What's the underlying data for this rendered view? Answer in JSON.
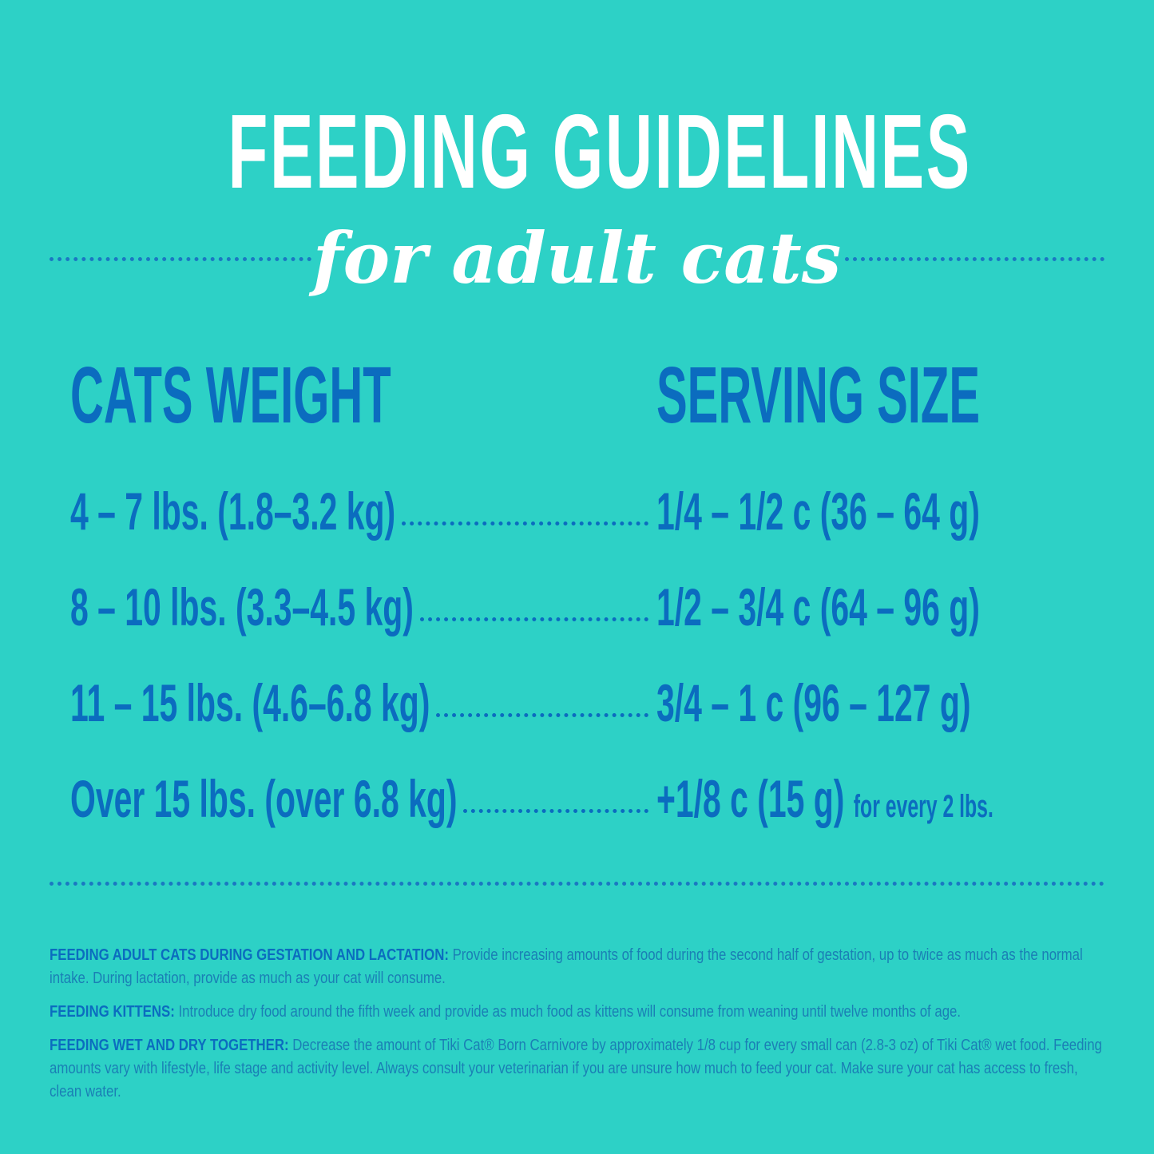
{
  "header": {
    "title": "FEEDING GUIDELINES",
    "subtitle": "for adult cats"
  },
  "columns": {
    "weight": "CATS WEIGHT",
    "serving": "SERVING SIZE"
  },
  "rows": [
    {
      "weight": "4 – 7 lbs. (1.8–3.2 kg)",
      "serving": "1/4 – 1/2 c (36 – 64 g)",
      "note": ""
    },
    {
      "weight": "8 – 10 lbs. (3.3–4.5 kg)",
      "serving": "1/2 – 3/4 c (64 – 96 g)",
      "note": ""
    },
    {
      "weight": "11 – 15 lbs. (4.6–6.8 kg)",
      "serving": "3/4 – 1 c (96 – 127 g)",
      "note": ""
    },
    {
      "weight": "Over 15 lbs. (over 6.8 kg)",
      "serving": "+1/8 c (15 g)",
      "note": "for every 2 lbs."
    }
  ],
  "notes": [
    {
      "label": "FEEDING ADULT CATS DURING GESTATION AND LACTATION:",
      "text": " Provide increasing amounts of food during the second half of gestation, up to twice as much as the normal intake.  During lactation, provide as much as your cat will consume."
    },
    {
      "label": "FEEDING KITTENS:",
      "text": " Introduce dry food around the fifth week and provide as much food as kittens will consume from weaning until twelve months of age."
    },
    {
      "label": "FEEDING WET AND DRY TOGETHER:",
      "text": " Decrease the amount of Tiki Cat® Born Carnivore by approximately 1/8 cup for every small can (2.8-3 oz) of Tiki Cat® wet food. Feeding amounts vary with lifestyle, life stage and activity level.  Always consult your veterinarian if you are unsure how much to feed your cat. Make sure your cat has access to fresh, clean water."
    }
  ],
  "colors": {
    "background": "#2dd1c6",
    "text_blue": "#0b6cbf",
    "notes_blue": "#1a7fb5",
    "title": "#ffffff"
  }
}
